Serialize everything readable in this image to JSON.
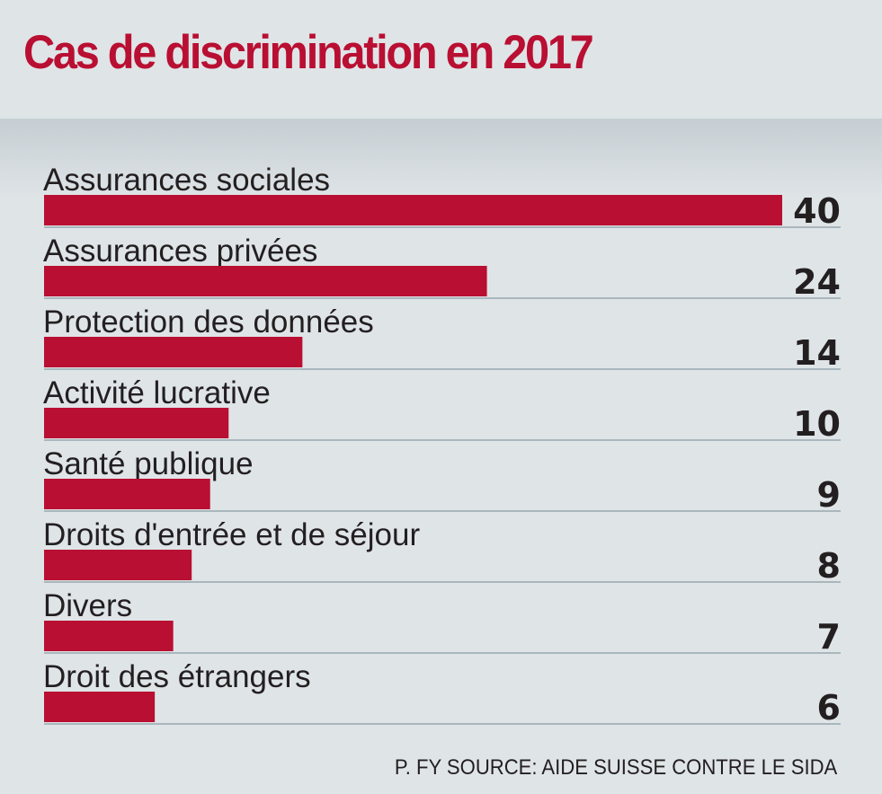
{
  "chart_data": {
    "type": "bar",
    "orientation": "horizontal",
    "title": "Cas de discrimination en 2017",
    "categories": [
      "Assurances sociales",
      "Assurances privées",
      "Protection des données",
      "Activité lucrative",
      "Santé publique",
      "Droits d'entrée et de séjour",
      "Divers",
      "Droit des étrangers"
    ],
    "values": [
      40,
      24,
      14,
      10,
      9,
      8,
      7,
      6
    ],
    "xlabel": "",
    "ylabel": "",
    "xlim": [
      0,
      40
    ],
    "grid": false,
    "legend": "none",
    "bar_color": "#b90f32",
    "source": "P. FY SOURCE: AIDE SUISSE CONTRE LE SIDA"
  }
}
